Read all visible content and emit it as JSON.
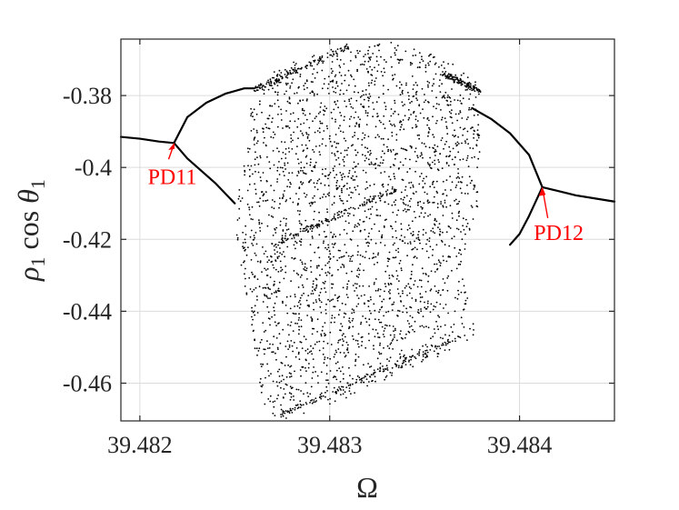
{
  "chart_data": {
    "type": "scatter",
    "title": "",
    "xlabel": "Ω",
    "ylabel": "ρ1 cos θ1",
    "xlim": [
      39.4819,
      39.4845
    ],
    "ylim": [
      -0.4705,
      -0.3643
    ],
    "x_ticks": [
      39.482,
      39.483,
      39.484
    ],
    "x_tick_labels": [
      "39.482",
      "39.483",
      "39.484"
    ],
    "y_ticks": [
      -0.38,
      -0.4,
      -0.42,
      -0.44,
      -0.46
    ],
    "y_tick_labels": [
      "-0.38",
      "-0.4",
      "-0.42",
      "-0.44",
      "-0.46"
    ],
    "grid": true,
    "marker_color": "#000000",
    "annotation_color": "#ff0000",
    "branches": [
      {
        "part": "period-1 left",
        "x": [
          39.4819,
          39.482,
          39.4821,
          39.48218
        ],
        "y": [
          -0.3915,
          -0.392,
          -0.3928,
          -0.3932
        ]
      },
      {
        "part": "period-2 left upper",
        "x": [
          39.48218,
          39.48225,
          39.48235,
          39.48245,
          39.48255,
          39.4826
        ],
        "y": [
          -0.3932,
          -0.386,
          -0.382,
          -0.3795,
          -0.378,
          -0.378
        ]
      },
      {
        "part": "period-2 left lower",
        "x": [
          39.48218,
          39.48225,
          39.4824,
          39.4825
        ],
        "y": [
          -0.3932,
          -0.3975,
          -0.4045,
          -0.41
        ]
      },
      {
        "part": "period-2 right upper",
        "x": [
          39.48375,
          39.48385,
          39.48395,
          39.48405,
          39.48412
        ],
        "y": [
          -0.3835,
          -0.3865,
          -0.3905,
          -0.3965,
          -0.4055
        ]
      },
      {
        "part": "period-2 right lower",
        "x": [
          39.48395,
          39.484,
          39.48405,
          39.48412
        ],
        "y": [
          -0.4215,
          -0.4185,
          -0.4135,
          -0.4055
        ]
      },
      {
        "part": "period-1 right",
        "x": [
          39.48412,
          39.4842,
          39.4843,
          39.4845
        ],
        "y": [
          -0.4055,
          -0.4065,
          -0.4078,
          -0.4095
        ]
      }
    ],
    "chaotic_region": {
      "x_range": [
        39.4825,
        39.4838
      ],
      "y_range": [
        -0.4705,
        -0.3645
      ]
    },
    "annotations": [
      {
        "text": "PD11",
        "x": 39.48218,
        "y": -0.3932
      },
      {
        "text": "PD12",
        "x": 39.48412,
        "y": -0.4055
      }
    ]
  }
}
